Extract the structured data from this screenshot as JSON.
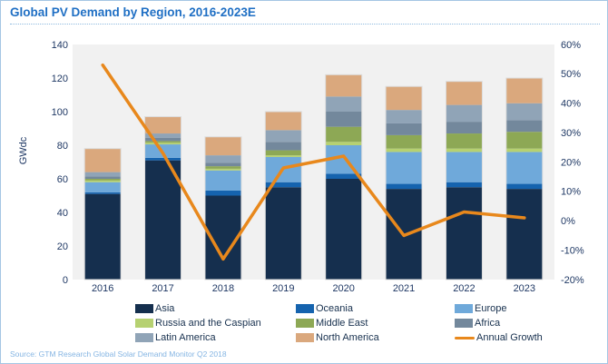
{
  "title": "Global PV Demand by Region, 2016-2023E",
  "source": "Source: GTM Research Global Solar Demand Monitor Q2 2018",
  "chart_data": {
    "type": "bar",
    "subtype": "stacked-bar-with-line-overlay",
    "title": "Global PV Demand by Region, 2016-2023E",
    "categories": [
      "2016",
      "2017",
      "2018",
      "2019",
      "2020",
      "2021",
      "2022",
      "2023"
    ],
    "series": [
      {
        "name": "Asia",
        "color": "#152f4e",
        "values": [
          51,
          71,
          50,
          55,
          60,
          54,
          55,
          54
        ]
      },
      {
        "name": "Oceania",
        "color": "#1563ae",
        "values": [
          1,
          1.5,
          3,
          3,
          3,
          3,
          3,
          3
        ]
      },
      {
        "name": "Europe",
        "color": "#6fa9da",
        "values": [
          6,
          8,
          12,
          15,
          17,
          19,
          18,
          19
        ]
      },
      {
        "name": "Russia and the Caspian",
        "color": "#b6d171",
        "values": [
          1,
          1,
          1,
          1,
          2,
          2,
          2,
          2
        ]
      },
      {
        "name": "Middle East",
        "color": "#8da855",
        "values": [
          1,
          1,
          1.5,
          3,
          9,
          8,
          9,
          10
        ]
      },
      {
        "name": "Africa",
        "color": "#73889c",
        "values": [
          1.5,
          2,
          2,
          5,
          9,
          7,
          7,
          7
        ]
      },
      {
        "name": "Latin America",
        "color": "#90a4b7",
        "values": [
          2.5,
          2.5,
          4.5,
          7,
          9,
          8,
          10,
          10
        ]
      },
      {
        "name": "North America",
        "color": "#daa87d",
        "values": [
          14,
          10,
          11,
          11,
          13,
          14,
          14,
          15
        ]
      }
    ],
    "line_series": {
      "name": "Annual Growth",
      "color": "#e8881c",
      "values": [
        53,
        23,
        -13,
        18,
        22,
        -5,
        3,
        1
      ],
      "unit": "%"
    },
    "left_axis": {
      "title": "GWdc",
      "min": 0,
      "max": 140,
      "step": 20,
      "ticks": [
        "0",
        "20",
        "40",
        "60",
        "80",
        "100",
        "120",
        "140"
      ]
    },
    "right_axis": {
      "min": -20,
      "max": 60,
      "step": 10,
      "ticks": [
        "-20%",
        "-10%",
        "0%",
        "10%",
        "20%",
        "30%",
        "40%",
        "50%",
        "60%"
      ]
    },
    "grid": false,
    "plot_background": "#f1f1f1",
    "legend_position": "bottom"
  },
  "legend": {
    "items": [
      {
        "label": "Asia",
        "color": "#152f4e",
        "shape": "box"
      },
      {
        "label": "Oceania",
        "color": "#1563ae",
        "shape": "box"
      },
      {
        "label": "Europe",
        "color": "#6fa9da",
        "shape": "box"
      },
      {
        "label": "Russia and the Caspian",
        "color": "#b6d171",
        "shape": "box"
      },
      {
        "label": "Middle East",
        "color": "#8da855",
        "shape": "box"
      },
      {
        "label": "Africa",
        "color": "#73889c",
        "shape": "box"
      },
      {
        "label": "Latin America",
        "color": "#90a4b7",
        "shape": "box"
      },
      {
        "label": "North America",
        "color": "#daa87d",
        "shape": "box"
      },
      {
        "label": "Annual Growth",
        "color": "#e8881c",
        "shape": "line"
      }
    ]
  },
  "colors": {
    "title": "#1f6fc4",
    "axis_text": "#1f3864",
    "source_text": "#85b5e3",
    "frame_border": "#a5c6e4"
  }
}
